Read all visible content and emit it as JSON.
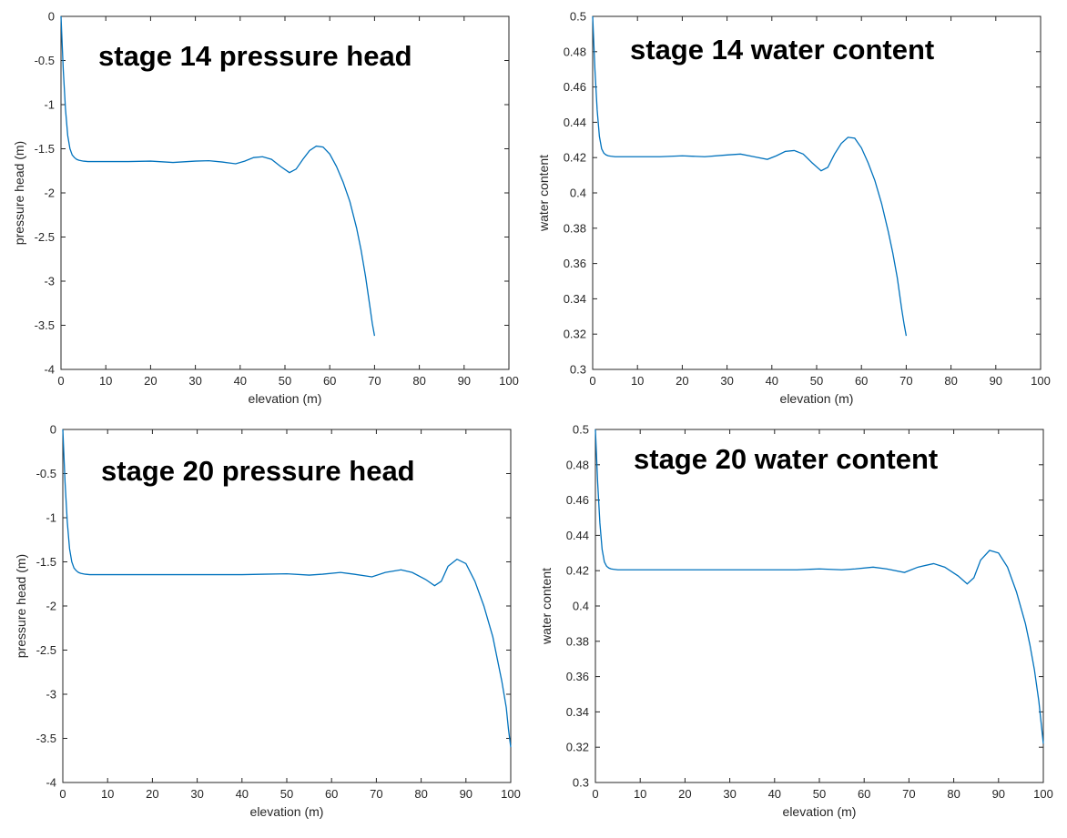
{
  "style": {
    "series_color": "#0072bd",
    "axis_color": "#262626"
  },
  "chart_data": [
    {
      "type": "line",
      "title": "stage 14 pressure head",
      "xlabel": "elevation (m)",
      "ylabel": "pressure head (m)",
      "xlim": [
        0,
        100
      ],
      "ylim": [
        -4,
        0
      ],
      "xticks": [
        "0",
        "10",
        "20",
        "30",
        "40",
        "50",
        "60",
        "70",
        "80",
        "90",
        "100"
      ],
      "yticks": [
        "0",
        "-0.5",
        "-1",
        "-1.5",
        "-2",
        "-2.5",
        "-3",
        "-3.5",
        "-4"
      ],
      "grid": false,
      "series": [
        {
          "x": [
            0,
            0.5,
            1,
            1.5,
            2,
            2.5,
            3,
            3.5,
            4,
            5,
            6,
            8,
            10,
            15,
            20,
            25,
            30,
            33,
            36,
            39,
            41,
            43,
            45,
            47,
            49,
            51,
            52.5,
            54,
            55.5,
            57,
            58.5,
            60,
            61.5,
            63,
            64.5,
            66,
            67,
            68,
            69,
            69.5,
            70
          ],
          "y": [
            0,
            -0.6,
            -1.05,
            -1.35,
            -1.5,
            -1.57,
            -1.6,
            -1.62,
            -1.63,
            -1.64,
            -1.645,
            -1.645,
            -1.645,
            -1.645,
            -1.64,
            -1.655,
            -1.64,
            -1.635,
            -1.65,
            -1.67,
            -1.64,
            -1.6,
            -1.59,
            -1.62,
            -1.7,
            -1.77,
            -1.73,
            -1.62,
            -1.52,
            -1.47,
            -1.48,
            -1.56,
            -1.7,
            -1.88,
            -2.1,
            -2.4,
            -2.65,
            -2.95,
            -3.3,
            -3.48,
            -3.62
          ]
        }
      ]
    },
    {
      "type": "line",
      "title": "stage 14 water content",
      "xlabel": "elevation (m)",
      "ylabel": "water content",
      "xlim": [
        0,
        100
      ],
      "ylim": [
        0.3,
        0.5
      ],
      "xticks": [
        "0",
        "10",
        "20",
        "30",
        "40",
        "50",
        "60",
        "70",
        "80",
        "90",
        "100"
      ],
      "yticks": [
        "0.5",
        "0.48",
        "0.46",
        "0.44",
        "0.42",
        "0.4",
        "0.38",
        "0.36",
        "0.34",
        "0.32",
        "0.3"
      ],
      "grid": false,
      "series": [
        {
          "x": [
            0,
            0.5,
            1,
            1.5,
            2,
            2.5,
            3,
            3.5,
            4,
            5,
            6,
            8,
            10,
            15,
            20,
            25,
            30,
            33,
            36,
            39,
            41,
            43,
            45,
            47,
            49,
            51,
            52.5,
            54,
            55.5,
            57,
            58.5,
            60,
            61.5,
            63,
            64.5,
            66,
            67,
            68,
            69,
            69.5,
            70
          ],
          "y": [
            0.5,
            0.47,
            0.447,
            0.432,
            0.425,
            0.4225,
            0.4215,
            0.421,
            0.4208,
            0.4205,
            0.4205,
            0.4205,
            0.4205,
            0.4205,
            0.421,
            0.4205,
            0.4215,
            0.422,
            0.4205,
            0.419,
            0.421,
            0.4235,
            0.424,
            0.422,
            0.417,
            0.4125,
            0.4145,
            0.422,
            0.428,
            0.4315,
            0.431,
            0.4255,
            0.417,
            0.407,
            0.394,
            0.378,
            0.366,
            0.352,
            0.334,
            0.326,
            0.319
          ]
        }
      ]
    },
    {
      "type": "line",
      "title": "stage 20 pressure head",
      "xlabel": "elevation (m)",
      "ylabel": "pressure head (m)",
      "xlim": [
        0,
        100
      ],
      "ylim": [
        -4,
        0
      ],
      "xticks": [
        "0",
        "10",
        "20",
        "30",
        "40",
        "50",
        "60",
        "70",
        "80",
        "90",
        "100"
      ],
      "yticks": [
        "0",
        "-0.5",
        "-1",
        "-1.5",
        "-2",
        "-2.5",
        "-3",
        "-3.5",
        "-4"
      ],
      "grid": false,
      "series": [
        {
          "x": [
            0,
            0.5,
            1,
            1.5,
            2,
            2.5,
            3,
            3.5,
            4,
            5,
            6,
            8,
            10,
            20,
            30,
            40,
            45,
            50,
            55,
            58,
            62,
            65,
            69,
            72,
            75.5,
            78,
            81,
            83,
            84.5,
            86,
            88,
            90,
            92,
            94,
            96,
            97,
            98,
            99,
            99.5,
            100
          ],
          "y": [
            0,
            -0.6,
            -1.05,
            -1.35,
            -1.5,
            -1.57,
            -1.6,
            -1.62,
            -1.63,
            -1.64,
            -1.645,
            -1.645,
            -1.645,
            -1.645,
            -1.645,
            -1.645,
            -1.64,
            -1.635,
            -1.65,
            -1.64,
            -1.62,
            -1.64,
            -1.67,
            -1.62,
            -1.59,
            -1.62,
            -1.7,
            -1.77,
            -1.72,
            -1.55,
            -1.47,
            -1.52,
            -1.72,
            -2.0,
            -2.35,
            -2.6,
            -2.85,
            -3.15,
            -3.4,
            -3.6
          ]
        }
      ]
    },
    {
      "type": "line",
      "title": "stage 20 water content",
      "xlabel": "elevation (m)",
      "ylabel": "water content",
      "xlim": [
        0,
        100
      ],
      "ylim": [
        0.3,
        0.5
      ],
      "xticks": [
        "0",
        "10",
        "20",
        "30",
        "40",
        "50",
        "60",
        "70",
        "80",
        "90",
        "100"
      ],
      "yticks": [
        "0.5",
        "0.48",
        "0.46",
        "0.44",
        "0.42",
        "0.4",
        "0.38",
        "0.36",
        "0.34",
        "0.32",
        "0.3"
      ],
      "grid": false,
      "series": [
        {
          "x": [
            0,
            0.5,
            1,
            1.5,
            2,
            2.5,
            3,
            3.5,
            4,
            5,
            6,
            8,
            10,
            20,
            30,
            40,
            45,
            50,
            55,
            58,
            62,
            65,
            69,
            72,
            75.5,
            78,
            81,
            83,
            84.5,
            86,
            88,
            90,
            92,
            94,
            96,
            97,
            98,
            99,
            99.5,
            100
          ],
          "y": [
            0.5,
            0.47,
            0.447,
            0.432,
            0.425,
            0.4225,
            0.4215,
            0.421,
            0.4208,
            0.4205,
            0.4205,
            0.4205,
            0.4205,
            0.4205,
            0.4205,
            0.4205,
            0.4205,
            0.421,
            0.4205,
            0.421,
            0.422,
            0.421,
            0.419,
            0.422,
            0.424,
            0.422,
            0.417,
            0.4125,
            0.416,
            0.426,
            0.4315,
            0.43,
            0.422,
            0.408,
            0.39,
            0.378,
            0.364,
            0.346,
            0.334,
            0.322
          ]
        }
      ]
    }
  ]
}
